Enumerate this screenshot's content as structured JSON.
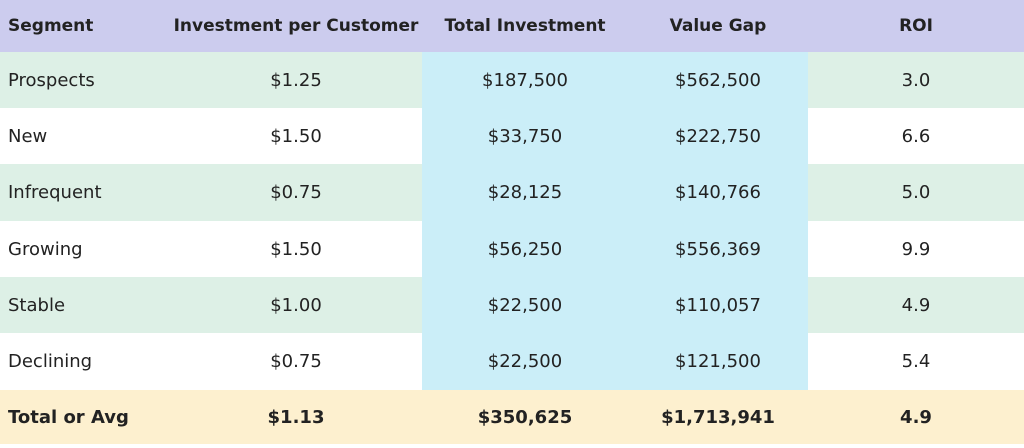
{
  "table": {
    "headers": [
      "Segment",
      "Investment per Customer",
      "Total Investment",
      "Value Gap",
      "ROI"
    ],
    "rows": [
      [
        "Prospects",
        "$1.25",
        "$187,500",
        "$562,500",
        "3.0"
      ],
      [
        "New",
        "$1.50",
        "$33,750",
        "$222,750",
        "6.6"
      ],
      [
        "Infrequent",
        "$0.75",
        "$28,125",
        "$140,766",
        "5.0"
      ],
      [
        "Growing",
        "$1.50",
        "$56,250",
        "$556,369",
        "9.9"
      ],
      [
        "Stable",
        "$1.00",
        "$22,500",
        "$110,057",
        "4.9"
      ],
      [
        "Declining",
        "$0.75",
        "$22,500",
        "$121,500",
        "5.4"
      ]
    ],
    "total": [
      "Total or Avg",
      "$1.13",
      "$350,625",
      "$1,713,941",
      "4.9"
    ]
  },
  "colors": {
    "header_bg": "#ccccee",
    "stripe_bg": "#ddf0e6",
    "highlight_col_bg": "#cbeef8",
    "total_bg": "#fdf0cf"
  }
}
